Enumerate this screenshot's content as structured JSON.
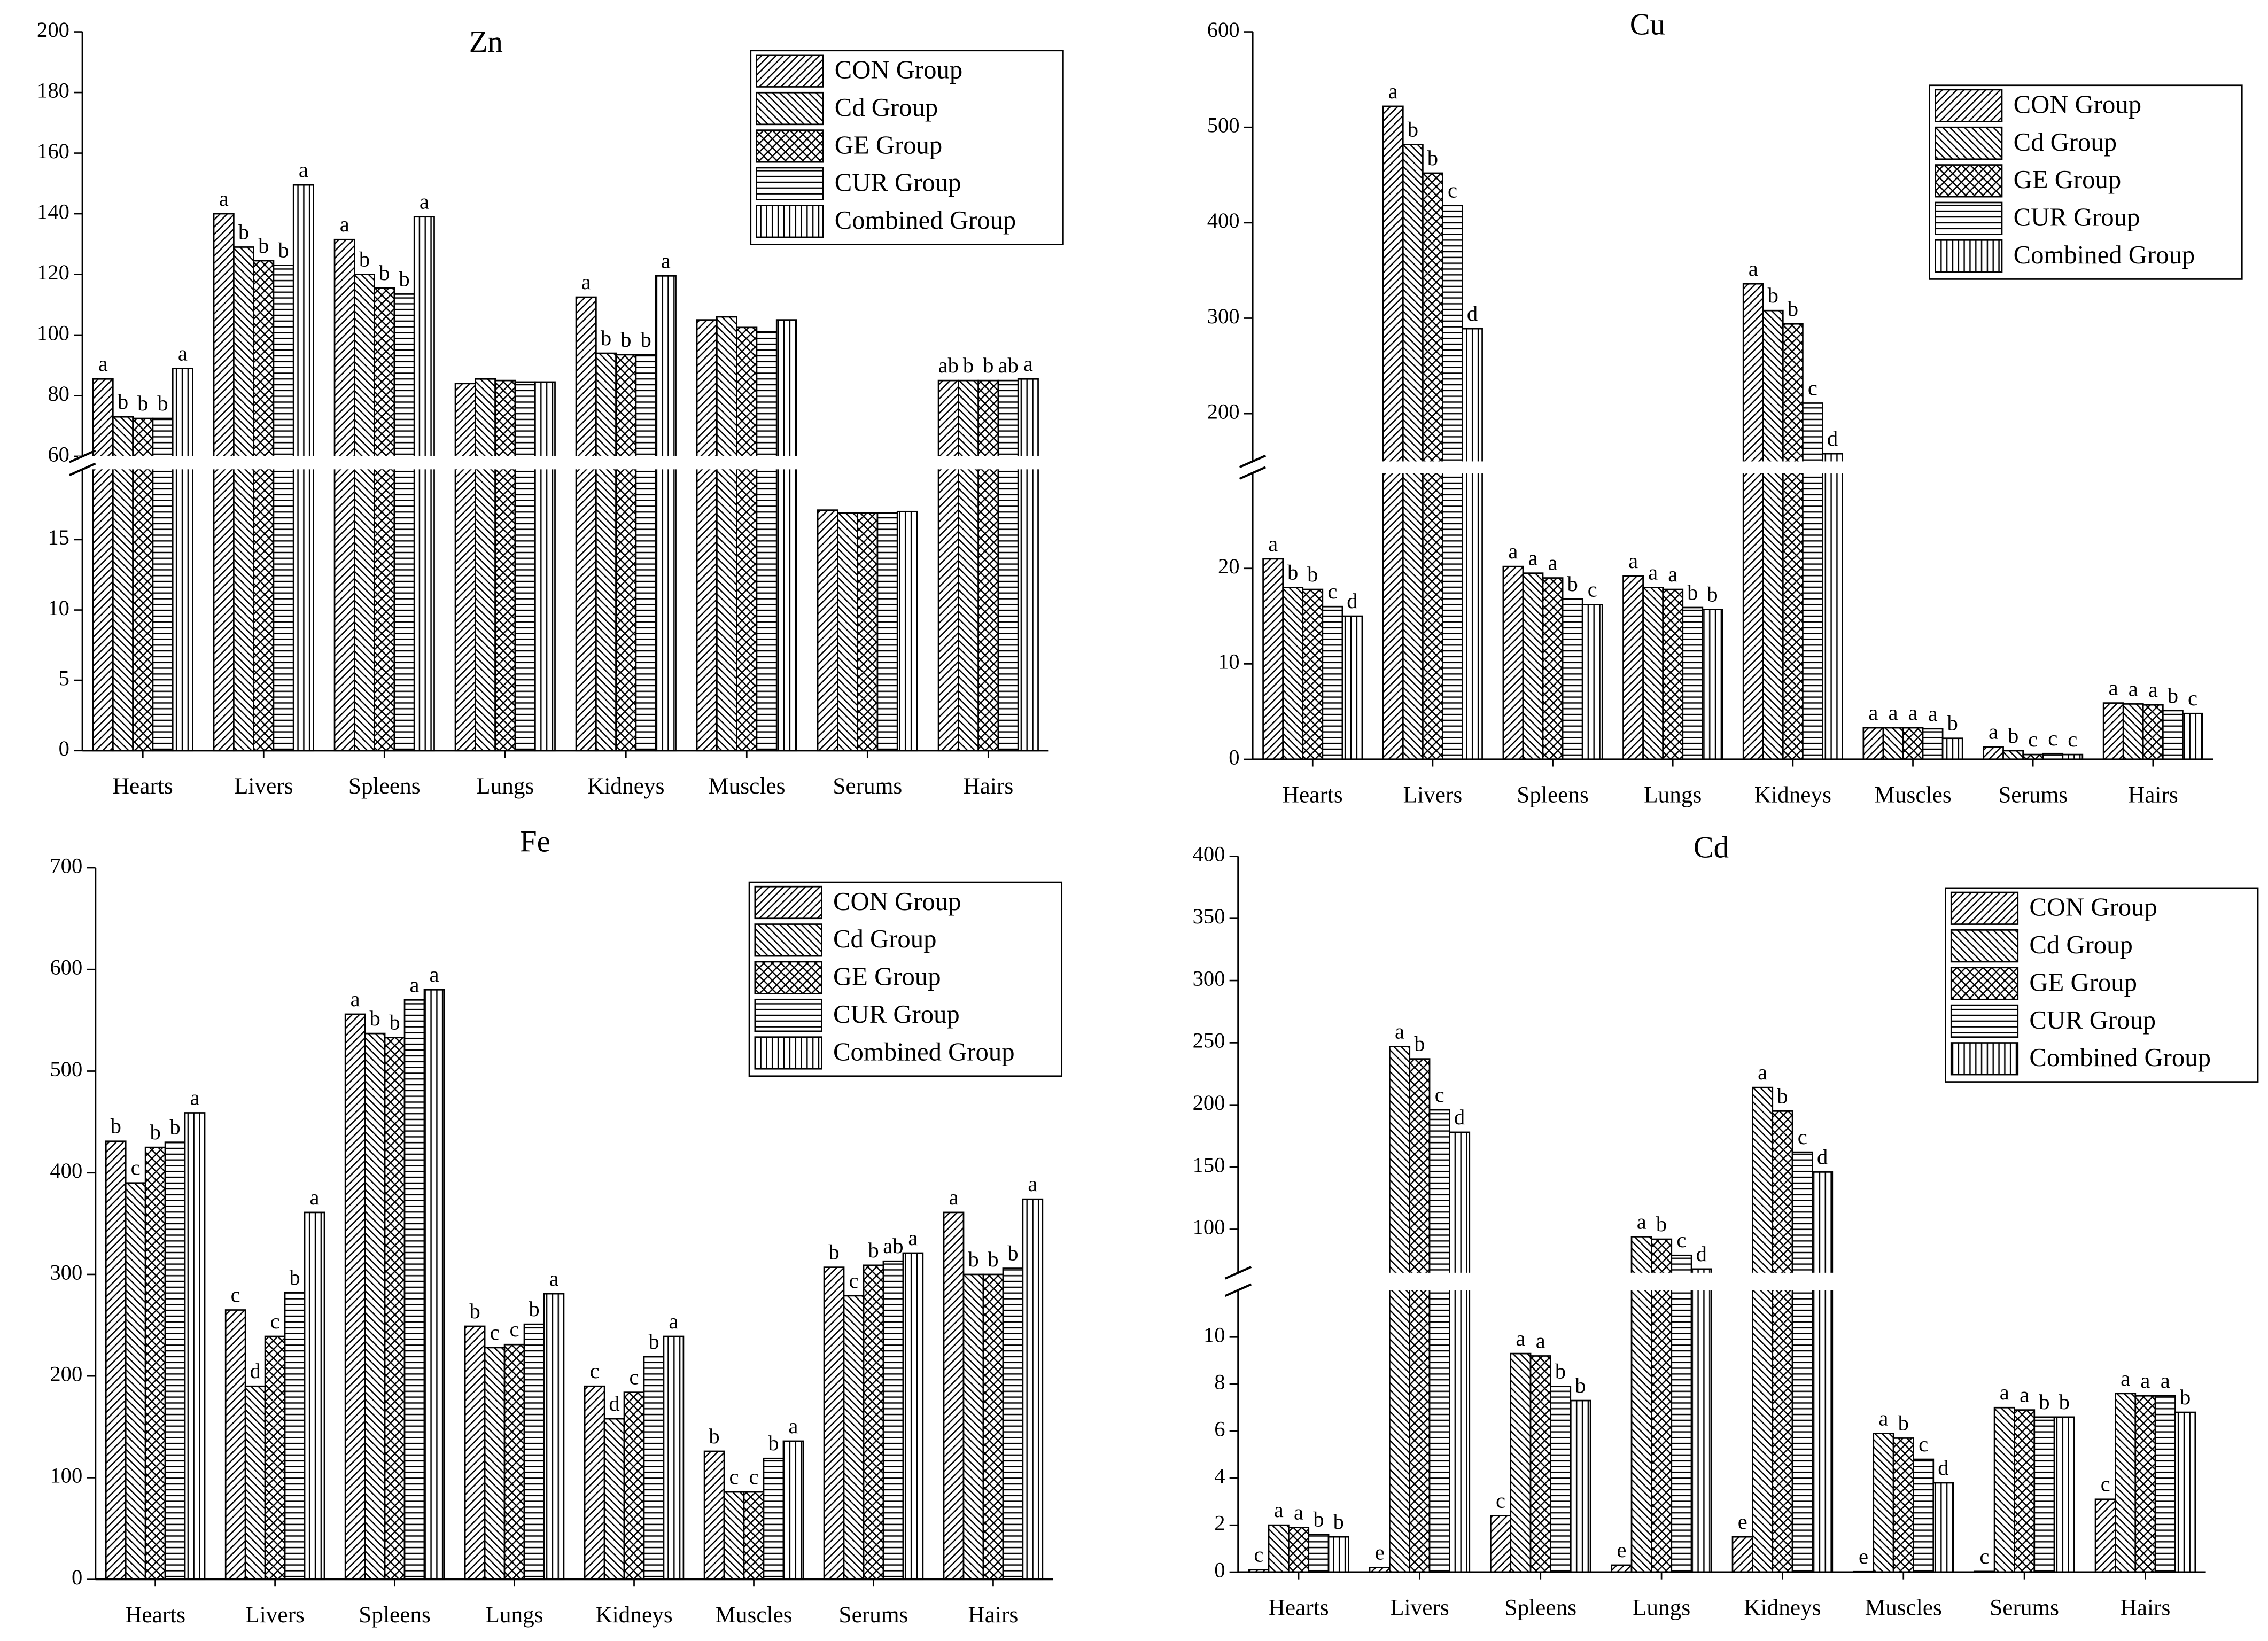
{
  "chart_data": [
    {
      "type": "bar",
      "title": "Zn",
      "categories": [
        "Hearts",
        "Livers",
        "Spleens",
        "Lungs",
        "Kidneys",
        "Muscles",
        "Serums",
        "Hairs"
      ],
      "series": [
        {
          "name": "CON Group",
          "pattern": "diagonal-up",
          "values": [
            85.5,
            140,
            131.5,
            84,
            112.5,
            105,
            17.1,
            85
          ],
          "letters": [
            "a",
            "a",
            "a",
            null,
            "a",
            null,
            null,
            "ab"
          ]
        },
        {
          "name": "Cd Group",
          "pattern": "diagonal-down",
          "values": [
            73,
            129,
            120,
            85.5,
            94,
            106,
            16.9,
            85
          ],
          "letters": [
            "b",
            "b",
            "b",
            null,
            "b",
            null,
            null,
            "b"
          ]
        },
        {
          "name": "GE Group",
          "pattern": "crosshatch",
          "values": [
            72.5,
            124.5,
            115.5,
            85,
            93.5,
            102.5,
            16.9,
            85
          ],
          "letters": [
            "b",
            "b",
            "b",
            null,
            "b",
            null,
            null,
            "b"
          ]
        },
        {
          "name": "CUR Group",
          "pattern": "horizontal",
          "values": [
            72.5,
            123,
            113.5,
            84.5,
            93.5,
            101,
            16.9,
            85
          ],
          "letters": [
            "b",
            "b",
            "b",
            null,
            "b",
            null,
            null,
            "ab"
          ]
        },
        {
          "name": "Combined Group",
          "pattern": "vertical",
          "values": [
            89,
            149.5,
            139,
            84.5,
            119.5,
            105,
            17,
            85.5
          ],
          "letters": [
            "a",
            "a",
            "a",
            null,
            "a",
            null,
            null,
            "a"
          ]
        }
      ],
      "ylim": [
        0,
        200
      ],
      "ybreak": [
        20,
        60
      ],
      "yticks": [
        0,
        5,
        10,
        15,
        60,
        80,
        100,
        120,
        140,
        160,
        180,
        200
      ],
      "legend": "upper right"
    },
    {
      "type": "bar",
      "title": "Cu",
      "categories": [
        "Hearts",
        "Livers",
        "Spleens",
        "Lungs",
        "Kidneys",
        "Muscles",
        "Serums",
        "Hairs"
      ],
      "series": [
        {
          "name": "CON Group",
          "pattern": "diagonal-up",
          "values": [
            21,
            522,
            20.2,
            19.2,
            336,
            3.3,
            1.3,
            5.9
          ],
          "letters": [
            "a",
            "a",
            "a",
            "a",
            "a",
            "a",
            "a",
            "a"
          ]
        },
        {
          "name": "Cd Group",
          "pattern": "diagonal-down",
          "values": [
            18,
            482,
            19.5,
            18,
            308,
            3.3,
            0.9,
            5.8
          ],
          "letters": [
            "b",
            "b",
            "a",
            "a",
            "b",
            "a",
            "b",
            "a"
          ]
        },
        {
          "name": "GE Group",
          "pattern": "crosshatch",
          "values": [
            17.8,
            452,
            19,
            17.8,
            294,
            3.3,
            0.5,
            5.7
          ],
          "letters": [
            "b",
            "b",
            "a",
            "a",
            "b",
            "a",
            "c",
            "a"
          ]
        },
        {
          "name": "CUR Group",
          "pattern": "horizontal",
          "values": [
            16,
            418,
            16.8,
            15.9,
            211,
            3.2,
            0.6,
            5.1
          ],
          "letters": [
            "c",
            "c",
            "b",
            "b",
            "c",
            "a",
            "c",
            "b"
          ]
        },
        {
          "name": "Combined Group",
          "pattern": "vertical",
          "values": [
            15,
            289,
            16.2,
            15.7,
            158,
            2.2,
            0.5,
            4.8
          ],
          "letters": [
            "d",
            "d",
            "c",
            "b",
            "d",
            "b",
            "c",
            "c"
          ]
        }
      ],
      "ylim": [
        0,
        600
      ],
      "ybreak": [
        30,
        150
      ],
      "yticks": [
        0,
        10,
        20,
        200,
        300,
        400,
        500,
        600
      ],
      "legend": "upper right"
    },
    {
      "type": "bar",
      "title": "Fe",
      "categories": [
        "Hearts",
        "Livers",
        "Spleens",
        "Lungs",
        "Kidneys",
        "Muscles",
        "Serums",
        "Hairs"
      ],
      "series": [
        {
          "name": "CON Group",
          "pattern": "diagonal-up",
          "values": [
            431,
            265,
            556,
            249,
            190,
            126,
            307,
            361
          ],
          "letters": [
            "b",
            "c",
            "a",
            "b",
            "c",
            "b",
            "b",
            "a"
          ]
        },
        {
          "name": "Cd Group",
          "pattern": "diagonal-down",
          "values": [
            390,
            190,
            537,
            228,
            158,
            86,
            279,
            300
          ],
          "letters": [
            "c",
            "d",
            "b",
            "c",
            "d",
            "c",
            "c",
            "b"
          ]
        },
        {
          "name": "GE Group",
          "pattern": "crosshatch",
          "values": [
            425,
            239,
            533,
            231,
            184,
            86,
            309,
            300
          ],
          "letters": [
            "b",
            "c",
            "b",
            "c",
            "c",
            "c",
            "b",
            "b"
          ]
        },
        {
          "name": "CUR Group",
          "pattern": "horizontal",
          "values": [
            430,
            282,
            570,
            251,
            219,
            119,
            313,
            306
          ],
          "letters": [
            "b",
            "b",
            "a",
            "b",
            "b",
            "b",
            "ab",
            "b"
          ]
        },
        {
          "name": "Combined Group",
          "pattern": "vertical",
          "values": [
            459,
            361,
            580,
            281,
            239,
            136,
            321,
            374
          ],
          "letters": [
            "a",
            "a",
            "a",
            "a",
            "a",
            "a",
            "a",
            "a"
          ]
        }
      ],
      "ylim": [
        0,
        700
      ],
      "yticks": [
        0,
        100,
        200,
        300,
        400,
        500,
        600,
        700
      ],
      "legend": "upper right"
    },
    {
      "type": "bar",
      "title": "Cd",
      "categories": [
        "Hearts",
        "Livers",
        "Spleens",
        "Lungs",
        "Kidneys",
        "Muscles",
        "Serums",
        "Hairs"
      ],
      "series": [
        {
          "name": "CON Group",
          "pattern": "diagonal-up",
          "values": [
            0.1,
            0.2,
            2.4,
            0.3,
            1.5,
            0.02,
            0.03,
            3.1
          ],
          "letters": [
            "c",
            "e",
            "c",
            "e",
            "e",
            "e",
            "c",
            "c"
          ]
        },
        {
          "name": "Cd Group",
          "pattern": "diagonal-down",
          "values": [
            2.0,
            247,
            9.3,
            94,
            214,
            5.9,
            7.0,
            7.6
          ],
          "letters": [
            "a",
            "a",
            "a",
            "a",
            "a",
            "a",
            "a",
            "a"
          ]
        },
        {
          "name": "GE Group",
          "pattern": "crosshatch",
          "values": [
            1.9,
            237,
            9.2,
            92,
            195,
            5.7,
            6.9,
            7.5
          ],
          "letters": [
            "a",
            "b",
            "a",
            "b",
            "b",
            "b",
            "a",
            "a"
          ]
        },
        {
          "name": "CUR Group",
          "pattern": "horizontal",
          "values": [
            1.6,
            196,
            7.9,
            79,
            162,
            4.8,
            6.6,
            7.5
          ],
          "letters": [
            "b",
            "c",
            "b",
            "c",
            "c",
            "c",
            "b",
            "a"
          ]
        },
        {
          "name": "Combined Group",
          "pattern": "vertical",
          "values": [
            1.5,
            178,
            7.3,
            68,
            146,
            3.8,
            6.6,
            6.8
          ],
          "letters": [
            "b",
            "d",
            "b",
            "d",
            "d",
            "d",
            "b",
            "b"
          ]
        }
      ],
      "ylim": [
        0,
        400
      ],
      "ybreak": [
        12,
        65
      ],
      "yticks": [
        0,
        2,
        4,
        6,
        8,
        10,
        100,
        150,
        200,
        250,
        300,
        350,
        400
      ],
      "legend": "upper right"
    }
  ]
}
